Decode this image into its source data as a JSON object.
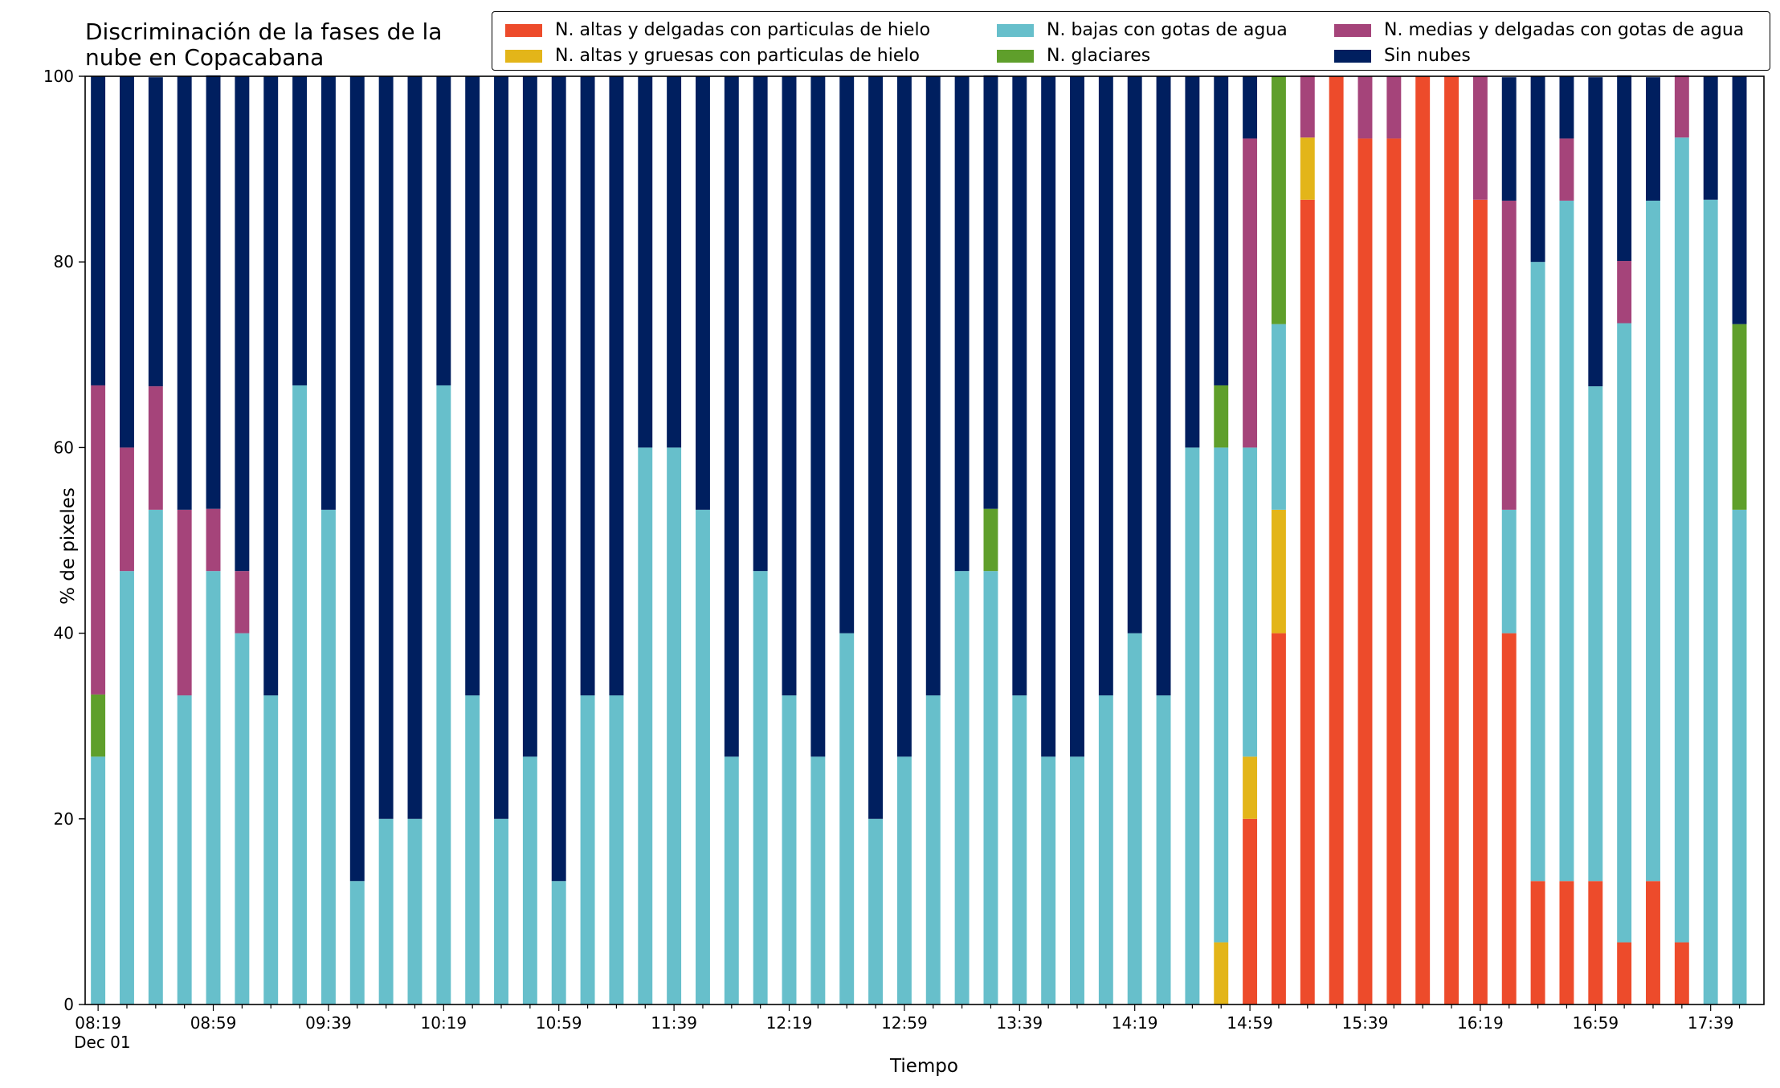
{
  "chart_data": {
    "type": "bar",
    "stacked": true,
    "title": "Discriminación de la fases de la\nnube en Copacabana",
    "xlabel": "Tiempo",
    "ylabel": "% de pixeles",
    "ylim": [
      0,
      100
    ],
    "yticks": [
      0,
      20,
      40,
      60,
      80,
      100
    ],
    "xtick_labels": [
      "08:19",
      "08:59",
      "09:39",
      "10:19",
      "10:59",
      "11:39",
      "12:19",
      "12:59",
      "13:39",
      "14:19",
      "14:59",
      "15:39",
      "16:19",
      "16:59",
      "17:39"
    ],
    "xtick_sublabel": "Dec 01",
    "legend_position": "top",
    "colors": {
      "altas_delgadas": "#ed4b2b",
      "altas_gruesas": "#e3b519",
      "bajas": "#67bfcb",
      "glaciares": "#5f9f2b",
      "medias": "#a5447a",
      "sin_nubes": "#001f5f"
    },
    "legend": [
      {
        "key": "altas_delgadas",
        "label": "N. altas y delgadas con particulas de hielo"
      },
      {
        "key": "bajas",
        "label": "N. bajas con gotas de agua"
      },
      {
        "key": "medias",
        "label": "N. medias y delgadas con gotas de agua"
      },
      {
        "key": "altas_gruesas",
        "label": "N. altas y gruesas con particulas de hielo"
      },
      {
        "key": "glaciares",
        "label": "N. glaciares"
      },
      {
        "key": "sin_nubes",
        "label": "Sin nubes"
      }
    ],
    "x": [
      "08:19",
      "08:29",
      "08:39",
      "08:49",
      "08:59",
      "09:09",
      "09:19",
      "09:29",
      "09:39",
      "09:49",
      "09:59",
      "10:09",
      "10:19",
      "10:29",
      "10:39",
      "10:49",
      "10:59",
      "11:09",
      "11:19",
      "11:29",
      "11:39",
      "11:49",
      "11:59",
      "12:09",
      "12:19",
      "12:29",
      "12:39",
      "12:49",
      "12:59",
      "13:09",
      "13:19",
      "13:29",
      "13:39",
      "13:49",
      "13:59",
      "14:09",
      "14:19",
      "14:29",
      "14:39",
      "14:49",
      "14:59",
      "15:09",
      "15:19",
      "15:29",
      "15:39",
      "15:49",
      "15:59",
      "16:09",
      "16:19",
      "16:29",
      "16:39",
      "16:49",
      "16:59",
      "17:09",
      "17:19",
      "17:29",
      "17:39",
      "17:49"
    ],
    "series": [
      {
        "key": "altas_delgadas",
        "values": [
          0,
          0,
          0,
          0,
          0,
          0,
          0,
          0,
          0,
          0,
          0,
          0,
          0,
          0,
          0,
          0,
          0,
          0,
          0,
          0,
          0,
          0,
          0,
          0,
          0,
          0,
          0,
          0,
          0,
          0,
          0,
          0,
          0,
          0,
          0,
          0,
          0,
          0,
          0,
          0,
          20,
          40,
          86.7,
          100,
          93.3,
          93.3,
          100,
          100,
          86.7,
          40,
          13.3,
          13.3,
          13.3,
          6.7,
          13.3,
          6.7,
          0,
          0
        ]
      },
      {
        "key": "altas_gruesas",
        "values": [
          0,
          0,
          0,
          0,
          0,
          0,
          0,
          0,
          0,
          0,
          0,
          0,
          0,
          0,
          0,
          0,
          0,
          0,
          0,
          0,
          0,
          0,
          0,
          0,
          0,
          0,
          0,
          0,
          0,
          0,
          0,
          0,
          0,
          0,
          0,
          0,
          0,
          0,
          0,
          6.7,
          6.7,
          13.3,
          6.7,
          0,
          0,
          0,
          0,
          0,
          0,
          0,
          0,
          0,
          0,
          0,
          0,
          0,
          0,
          0
        ]
      },
      {
        "key": "bajas",
        "values": [
          26.7,
          46.7,
          53.3,
          33.3,
          46.7,
          40,
          33.3,
          66.7,
          53.3,
          13.3,
          20,
          20,
          66.7,
          33.3,
          20,
          26.7,
          13.3,
          33.3,
          33.3,
          60,
          60,
          53.3,
          26.7,
          46.7,
          33.3,
          26.7,
          40,
          20,
          26.7,
          33.3,
          46.7,
          46.7,
          33.3,
          26.7,
          26.7,
          33.3,
          40,
          33.3,
          60,
          53.3,
          33.3,
          20,
          0,
          0,
          0,
          0,
          0,
          0,
          0,
          13.3,
          66.7,
          73.3,
          53.3,
          66.7,
          73.3,
          86.7,
          86.7,
          53.3
        ]
      },
      {
        "key": "glaciares",
        "values": [
          6.7,
          0,
          0,
          0,
          0,
          0,
          0,
          0,
          0,
          0,
          0,
          0,
          0,
          0,
          0,
          0,
          0,
          0,
          0,
          0,
          0,
          0,
          0,
          0,
          0,
          0,
          0,
          0,
          0,
          0,
          0,
          6.7,
          0,
          0,
          0,
          0,
          0,
          0,
          0,
          6.7,
          0,
          26.7,
          0,
          0,
          0,
          0,
          0,
          0,
          0,
          0,
          0,
          0,
          0,
          0,
          0,
          0,
          0,
          20
        ]
      },
      {
        "key": "medias",
        "values": [
          33.3,
          13.3,
          13.3,
          20,
          6.7,
          6.7,
          0,
          0,
          0,
          0,
          0,
          0,
          0,
          0,
          0,
          0,
          0,
          0,
          0,
          0,
          0,
          0,
          0,
          0,
          0,
          0,
          0,
          0,
          0,
          0,
          0,
          0,
          0,
          0,
          0,
          0,
          0,
          0,
          0,
          0,
          33.3,
          0,
          6.7,
          0,
          6.7,
          6.7,
          0,
          0,
          13.3,
          33.3,
          0,
          6.7,
          0,
          6.7,
          0,
          6.7,
          0,
          0
        ]
      },
      {
        "key": "sin_nubes",
        "values": [
          33.3,
          40,
          33.3,
          46.7,
          46.7,
          53.3,
          66.7,
          33.3,
          46.7,
          86.7,
          80,
          80,
          33.3,
          66.7,
          80,
          73.3,
          86.7,
          66.7,
          66.7,
          40,
          40,
          46.7,
          73.3,
          53.3,
          66.7,
          73.3,
          60,
          80,
          73.3,
          66.7,
          53.3,
          46.7,
          66.7,
          73.3,
          73.3,
          66.7,
          60,
          66.7,
          40,
          33.3,
          6.7,
          0,
          0,
          0,
          0,
          0,
          0,
          0,
          0,
          13.3,
          20,
          6.7,
          33.3,
          20,
          13.3,
          0,
          13.3,
          26.7
        ]
      }
    ]
  }
}
